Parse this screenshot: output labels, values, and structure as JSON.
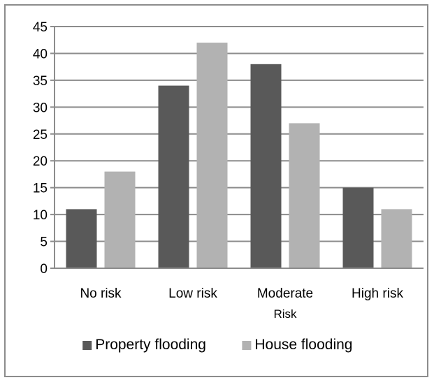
{
  "chart_data": {
    "type": "bar",
    "title": "",
    "xlabel": "",
    "ylabel": "",
    "categories": [
      [
        "No risk"
      ],
      [
        "Low risk"
      ],
      [
        "Moderate",
        "Risk"
      ],
      [
        "High risk"
      ]
    ],
    "series": [
      {
        "name": "Property flooding",
        "color": "#595959",
        "values": [
          11,
          34,
          38,
          15
        ]
      },
      {
        "name": "House flooding",
        "color": "#b2b2b2",
        "values": [
          18,
          42,
          27,
          11
        ]
      }
    ],
    "ylim": [
      0,
      45
    ],
    "yticks": [
      0,
      5,
      10,
      15,
      20,
      25,
      30,
      35,
      40,
      45
    ],
    "grid": true,
    "legend": "bottom",
    "gridline_color": "#8c8c8c",
    "axis_color": "#8c8c8c"
  }
}
